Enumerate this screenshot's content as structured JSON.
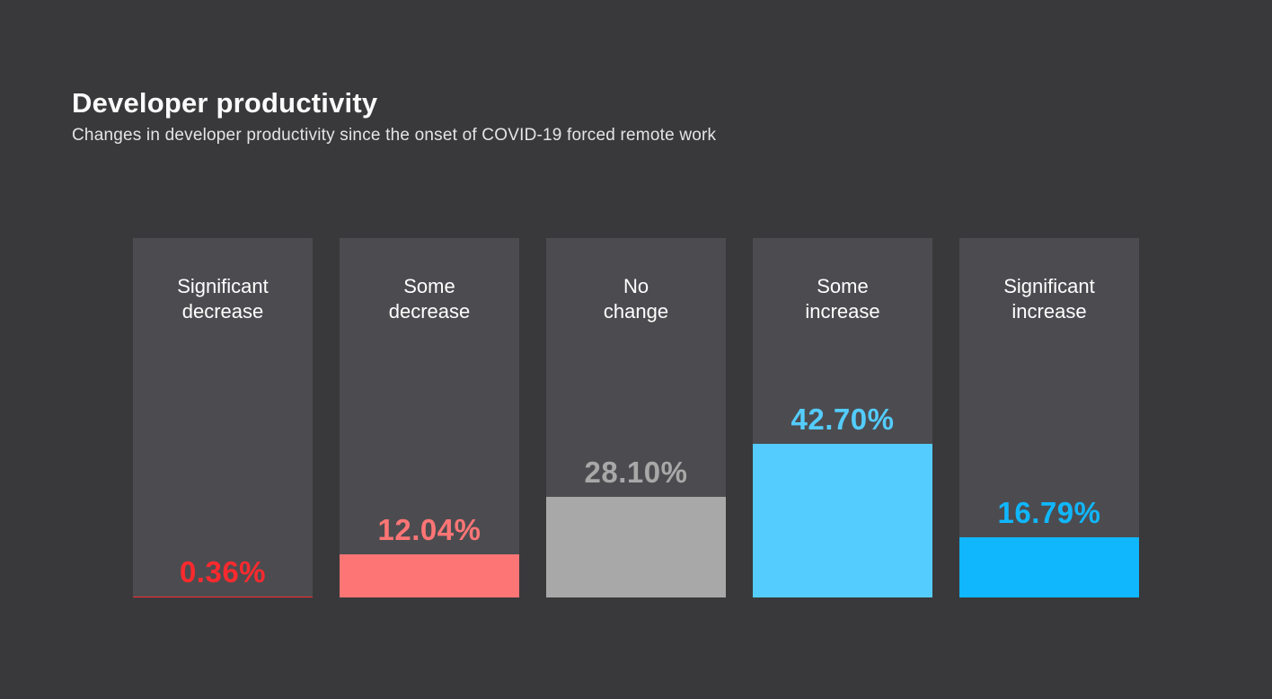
{
  "header": {
    "title": "Developer productivity",
    "subtitle": "Changes in developer productivity since the onset of COVID-19 forced remote work"
  },
  "chart_data": {
    "type": "bar",
    "title": "Developer productivity",
    "subtitle": "Changes in developer productivity since the onset of COVID-19 forced remote work",
    "categories": [
      "Significant decrease",
      "Some decrease",
      "No change",
      "Some increase",
      "Significant increase"
    ],
    "values": [
      0.36,
      12.04,
      28.1,
      42.7,
      16.79
    ],
    "value_labels": [
      "0.36%",
      "12.04%",
      "28.10%",
      "42.70%",
      "16.79%"
    ],
    "xlabel": "",
    "ylabel": "",
    "ylim": [
      0,
      100
    ],
    "grid": false,
    "legend": false,
    "orientation": "vertical",
    "bar_colors": [
      "#f92a2e",
      "#fd7575",
      "#a8a8a8",
      "#54ccfd",
      "#10b7fd"
    ],
    "track_color": "#4c4c50",
    "background_color": "#39393b"
  },
  "bars": [
    {
      "label": "Significant\ndecrease",
      "value": 0.36,
      "value_label": "0.36%",
      "color": "#f92a2e"
    },
    {
      "label": "Some\ndecrease",
      "value": 12.04,
      "value_label": "12.04%",
      "color": "#fd7575"
    },
    {
      "label": "No\nchange",
      "value": 28.1,
      "value_label": "28.10%",
      "color": "#a8a8a8"
    },
    {
      "label": "Some\nincrease",
      "value": 42.7,
      "value_label": "42.70%",
      "color": "#54ccfd"
    },
    {
      "label": "Significant\nincrease",
      "value": 16.79,
      "value_label": "16.79%",
      "color": "#10b7fd"
    }
  ]
}
